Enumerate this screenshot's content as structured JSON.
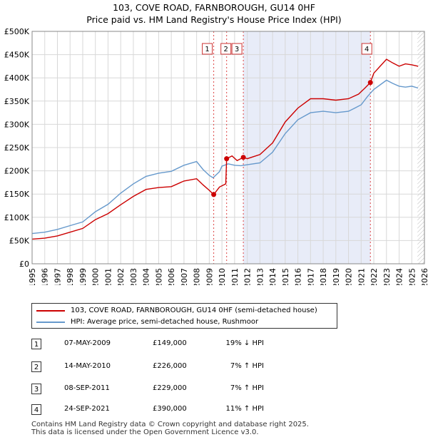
{
  "title_line1": "103, COVE ROAD, FARNBOROUGH, GU14 0HF",
  "title_line2": "Price paid vs. HM Land Registry's House Price Index (HPI)",
  "colors": {
    "property": "#cc0000",
    "hpi": "#6699cc",
    "shade": "#e8ecf8",
    "grid": "#d8d8d8"
  },
  "chart_data": {
    "type": "line",
    "title": "Price paid vs. HM Land Registry's House Price Index (HPI)",
    "xlabel": "",
    "ylabel": "",
    "xlim": [
      1995,
      2026
    ],
    "ylim": [
      0,
      500000
    ],
    "x_ticks": [
      "1995",
      "1996",
      "1997",
      "1998",
      "1999",
      "2000",
      "2001",
      "2002",
      "2003",
      "2004",
      "2005",
      "2006",
      "2007",
      "2008",
      "2009",
      "2010",
      "2011",
      "2012",
      "2013",
      "2014",
      "2015",
      "2016",
      "2017",
      "2018",
      "2019",
      "2020",
      "2021",
      "2022",
      "2023",
      "2024",
      "2025",
      "2026"
    ],
    "y_ticks": [
      {
        "value": 0,
        "label": "£0"
      },
      {
        "value": 50000,
        "label": "£50K"
      },
      {
        "value": 100000,
        "label": "£100K"
      },
      {
        "value": 150000,
        "label": "£150K"
      },
      {
        "value": 200000,
        "label": "£200K"
      },
      {
        "value": 250000,
        "label": "£250K"
      },
      {
        "value": 300000,
        "label": "£300K"
      },
      {
        "value": 350000,
        "label": "£350K"
      },
      {
        "value": 400000,
        "label": "£400K"
      },
      {
        "value": 450000,
        "label": "£450K"
      },
      {
        "value": 500000,
        "label": "£500K"
      }
    ],
    "shaded_region": [
      2011.69,
      2021.73
    ],
    "series": [
      {
        "name": "103, COVE ROAD, FARNBOROUGH, GU14 0HF (semi-detached house)",
        "color": "#cc0000",
        "x": [
          1995,
          1996,
          1997,
          1998,
          1999,
          2000,
          2001,
          2002,
          2003,
          2004,
          2005,
          2006,
          2007,
          2008,
          2008.5,
          2009,
          2009.35,
          2009.8,
          2010.3,
          2010.37,
          2010.8,
          2011.2,
          2011.69,
          2012,
          2013,
          2014,
          2015,
          2016,
          2017,
          2018,
          2019,
          2020,
          2020.8,
          2021.3,
          2021.73,
          2022,
          2022.5,
          2023,
          2023.5,
          2024,
          2024.5,
          2025,
          2025.5
        ],
        "y": [
          53000,
          55000,
          60000,
          68000,
          76000,
          95000,
          108000,
          127000,
          145000,
          160000,
          164000,
          166000,
          178000,
          183000,
          170000,
          158000,
          149000,
          165000,
          172000,
          226000,
          232000,
          222000,
          229000,
          226000,
          235000,
          260000,
          305000,
          335000,
          355000,
          355000,
          352000,
          355000,
          365000,
          378000,
          390000,
          410000,
          425000,
          440000,
          432000,
          425000,
          430000,
          428000,
          425000
        ]
      },
      {
        "name": "HPI: Average price, semi-detached house, Rushmoor",
        "color": "#6699cc",
        "x": [
          1995,
          1996,
          1997,
          1998,
          1999,
          2000,
          2001,
          2002,
          2003,
          2004,
          2005,
          2006,
          2007,
          2008,
          2008.5,
          2009,
          2009.3,
          2009.8,
          2010,
          2010.5,
          2011,
          2011.5,
          2012,
          2013,
          2014,
          2015,
          2016,
          2017,
          2018,
          2019,
          2020,
          2020.5,
          2021,
          2021.5,
          2022,
          2022.5,
          2023,
          2023.5,
          2024,
          2024.5,
          2025,
          2025.5
        ],
        "y": [
          65000,
          68000,
          74000,
          82000,
          90000,
          112000,
          128000,
          152000,
          172000,
          188000,
          195000,
          199000,
          212000,
          220000,
          203000,
          190000,
          185000,
          198000,
          210000,
          215000,
          212000,
          211000,
          213000,
          217000,
          240000,
          280000,
          310000,
          325000,
          328000,
          325000,
          328000,
          335000,
          342000,
          360000,
          375000,
          385000,
          395000,
          388000,
          382000,
          380000,
          382000,
          378000
        ]
      }
    ],
    "transactions": [
      {
        "num": "1",
        "x": 2009.35,
        "price_value": 149000,
        "date": "07-MAY-2009",
        "price": "£149,000",
        "hpi": "19% ↓ HPI"
      },
      {
        "num": "2",
        "x": 2010.37,
        "price_value": 226000,
        "date": "14-MAY-2010",
        "price": "£226,000",
        "hpi": "7% ↑ HPI"
      },
      {
        "num": "3",
        "x": 2011.69,
        "price_value": 229000,
        "date": "08-SEP-2011",
        "price": "£229,000",
        "hpi": "7% ↑ HPI"
      },
      {
        "num": "4",
        "x": 2021.73,
        "price_value": 390000,
        "date": "24-SEP-2021",
        "price": "£390,000",
        "hpi": "11% ↑ HPI"
      }
    ],
    "future_start": 2025.45
  },
  "legend": {
    "property_label": "103, COVE ROAD, FARNBOROUGH, GU14 0HF (semi-detached house)",
    "hpi_label": "HPI: Average price, semi-detached house, Rushmoor"
  },
  "footer_line1": "Contains HM Land Registry data © Crown copyright and database right 2025.",
  "footer_line2": "This data is licensed under the Open Government Licence v3.0."
}
